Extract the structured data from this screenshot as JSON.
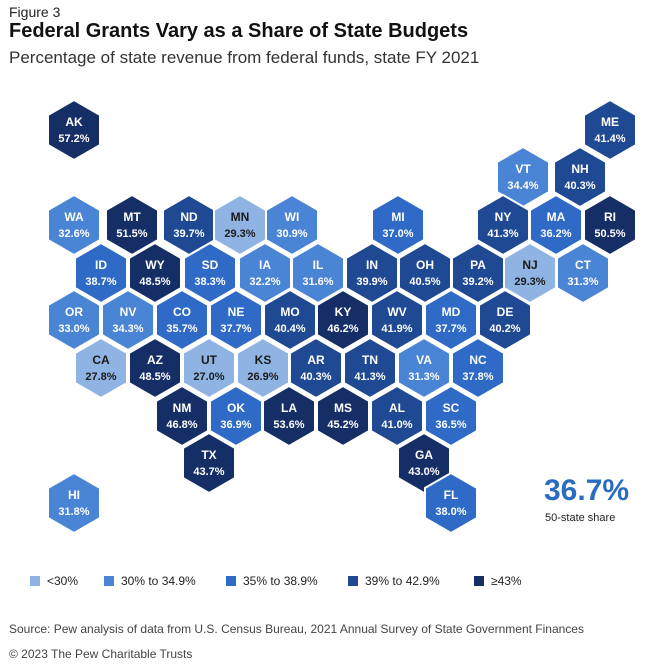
{
  "header": {
    "figure_label": "Figure 3",
    "title": "Federal Grants Vary as a Share of State Budgets",
    "subtitle": "Percentage of state revenue from federal funds, state FY 2021"
  },
  "colors": {
    "lt30": "#8fb4e3",
    "30to34_9": "#4a84d4",
    "35to38_9": "#2f6bc6",
    "39to42_9": "#1f4a93",
    "ge43": "#152e66",
    "share_value": "#2a6cc0"
  },
  "legend": [
    {
      "label": "<30%",
      "bin": "lt30"
    },
    {
      "label": "30% to 34.9%",
      "bin": "30to34_9"
    },
    {
      "label": "35% to 38.9%",
      "bin": "35to38_9"
    },
    {
      "label": "39% to 42.9%",
      "bin": "39to42_9"
    },
    {
      "label": "≥43%",
      "bin": "ge43"
    }
  ],
  "states": [
    {
      "abbr": "AK",
      "value": "57.2%",
      "bin": "ge43"
    },
    {
      "abbr": "ME",
      "value": "41.4%",
      "bin": "39to42_9"
    },
    {
      "abbr": "VT",
      "value": "34.4%",
      "bin": "30to34_9"
    },
    {
      "abbr": "NH",
      "value": "40.3%",
      "bin": "39to42_9"
    },
    {
      "abbr": "WA",
      "value": "32.6%",
      "bin": "30to34_9"
    },
    {
      "abbr": "MT",
      "value": "51.5%",
      "bin": "ge43"
    },
    {
      "abbr": "ND",
      "value": "39.7%",
      "bin": "39to42_9"
    },
    {
      "abbr": "MN",
      "value": "29.3%",
      "bin": "lt30"
    },
    {
      "abbr": "WI",
      "value": "30.9%",
      "bin": "30to34_9"
    },
    {
      "abbr": "MI",
      "value": "37.0%",
      "bin": "35to38_9"
    },
    {
      "abbr": "NY",
      "value": "41.3%",
      "bin": "39to42_9"
    },
    {
      "abbr": "MA",
      "value": "36.2%",
      "bin": "35to38_9"
    },
    {
      "abbr": "RI",
      "value": "50.5%",
      "bin": "ge43"
    },
    {
      "abbr": "ID",
      "value": "38.7%",
      "bin": "35to38_9"
    },
    {
      "abbr": "WY",
      "value": "48.5%",
      "bin": "ge43"
    },
    {
      "abbr": "SD",
      "value": "38.3%",
      "bin": "35to38_9"
    },
    {
      "abbr": "IA",
      "value": "32.2%",
      "bin": "30to34_9"
    },
    {
      "abbr": "IL",
      "value": "31.6%",
      "bin": "30to34_9"
    },
    {
      "abbr": "IN",
      "value": "39.9%",
      "bin": "39to42_9"
    },
    {
      "abbr": "OH",
      "value": "40.5%",
      "bin": "39to42_9"
    },
    {
      "abbr": "PA",
      "value": "39.2%",
      "bin": "39to42_9"
    },
    {
      "abbr": "NJ",
      "value": "29.3%",
      "bin": "lt30"
    },
    {
      "abbr": "CT",
      "value": "31.3%",
      "bin": "30to34_9"
    },
    {
      "abbr": "OR",
      "value": "33.0%",
      "bin": "30to34_9"
    },
    {
      "abbr": "NV",
      "value": "34.3%",
      "bin": "30to34_9"
    },
    {
      "abbr": "CO",
      "value": "35.7%",
      "bin": "35to38_9"
    },
    {
      "abbr": "NE",
      "value": "37.7%",
      "bin": "35to38_9"
    },
    {
      "abbr": "MO",
      "value": "40.4%",
      "bin": "39to42_9"
    },
    {
      "abbr": "KY",
      "value": "46.2%",
      "bin": "ge43"
    },
    {
      "abbr": "WV",
      "value": "41.9%",
      "bin": "39to42_9"
    },
    {
      "abbr": "MD",
      "value": "37.7%",
      "bin": "35to38_9"
    },
    {
      "abbr": "DE",
      "value": "40.2%",
      "bin": "39to42_9"
    },
    {
      "abbr": "CA",
      "value": "27.8%",
      "bin": "lt30"
    },
    {
      "abbr": "AZ",
      "value": "48.5%",
      "bin": "ge43"
    },
    {
      "abbr": "UT",
      "value": "27.0%",
      "bin": "lt30"
    },
    {
      "abbr": "KS",
      "value": "26.9%",
      "bin": "lt30"
    },
    {
      "abbr": "AR",
      "value": "40.3%",
      "bin": "39to42_9"
    },
    {
      "abbr": "TN",
      "value": "41.3%",
      "bin": "39to42_9"
    },
    {
      "abbr": "VA",
      "value": "31.3%",
      "bin": "30to34_9"
    },
    {
      "abbr": "NC",
      "value": "37.8%",
      "bin": "35to38_9"
    },
    {
      "abbr": "NM",
      "value": "46.8%",
      "bin": "ge43"
    },
    {
      "abbr": "OK",
      "value": "36.9%",
      "bin": "35to38_9"
    },
    {
      "abbr": "LA",
      "value": "53.6%",
      "bin": "ge43"
    },
    {
      "abbr": "MS",
      "value": "45.2%",
      "bin": "ge43"
    },
    {
      "abbr": "AL",
      "value": "41.0%",
      "bin": "39to42_9"
    },
    {
      "abbr": "SC",
      "value": "36.5%",
      "bin": "35to38_9"
    },
    {
      "abbr": "TX",
      "value": "43.7%",
      "bin": "ge43"
    },
    {
      "abbr": "GA",
      "value": "43.0%",
      "bin": "ge43"
    },
    {
      "abbr": "HI",
      "value": "31.8%",
      "bin": "30to34_9"
    },
    {
      "abbr": "FL",
      "value": "38.0%",
      "bin": "35to38_9"
    }
  ],
  "summary": {
    "value": "36.7%",
    "label": "50-state share"
  },
  "footer": {
    "source": "Source: Pew analysis of data from U.S. Census Bureau, 2021 Annual Survey of State Government Finances",
    "copyright": "© 2023 The Pew Charitable Trusts"
  }
}
